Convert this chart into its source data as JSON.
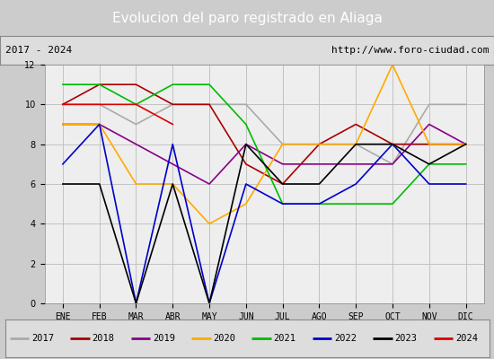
{
  "title": "Evolucion del paro registrado en Aliaga",
  "subtitle_left": "2017 - 2024",
  "subtitle_right": "http://www.foro-ciudad.com",
  "months": [
    "ENE",
    "FEB",
    "MAR",
    "ABR",
    "MAY",
    "JUN",
    "JUL",
    "AGO",
    "SEP",
    "OCT",
    "NOV",
    "DIC"
  ],
  "series": {
    "2017": {
      "color": "#aaaaaa",
      "values": [
        10,
        10,
        9,
        10,
        10,
        10,
        8,
        8,
        8,
        7,
        10,
        10
      ]
    },
    "2018": {
      "color": "#aa0000",
      "values": [
        10,
        11,
        11,
        10,
        10,
        7,
        6,
        8,
        9,
        8,
        8,
        8
      ]
    },
    "2019": {
      "color": "#880088",
      "values": [
        9,
        9,
        8,
        7,
        6,
        8,
        7,
        7,
        7,
        7,
        9,
        8
      ]
    },
    "2020": {
      "color": "#ffaa00",
      "values": [
        9,
        9,
        6,
        6,
        4,
        5,
        8,
        8,
        8,
        12,
        8,
        8
      ]
    },
    "2021": {
      "color": "#00bb00",
      "values": [
        11,
        11,
        10,
        11,
        11,
        9,
        5,
        5,
        5,
        5,
        7,
        7
      ]
    },
    "2022": {
      "color": "#0000cc",
      "values": [
        7,
        9,
        0,
        8,
        0,
        6,
        5,
        5,
        6,
        8,
        6,
        6
      ]
    },
    "2023": {
      "color": "#000000",
      "values": [
        6,
        6,
        0,
        6,
        0,
        8,
        6,
        6,
        8,
        8,
        7,
        8
      ]
    },
    "2024": {
      "color": "#dd0000",
      "values": [
        10,
        10,
        10,
        9,
        null,
        null,
        null,
        null,
        null,
        null,
        null,
        null
      ]
    }
  },
  "ylim": [
    0,
    12
  ],
  "yticks": [
    0,
    2,
    4,
    6,
    8,
    10,
    12
  ],
  "title_bg_color": "#5588cc",
  "title_color": "#ffffff",
  "title_fontsize": 11,
  "header_bg_color": "#dddddd",
  "plot_bg_color": "#eeeeee",
  "outer_bg_color": "#cccccc",
  "legend_bg_color": "#dddddd",
  "figsize": [
    5.5,
    4.0
  ],
  "dpi": 100
}
